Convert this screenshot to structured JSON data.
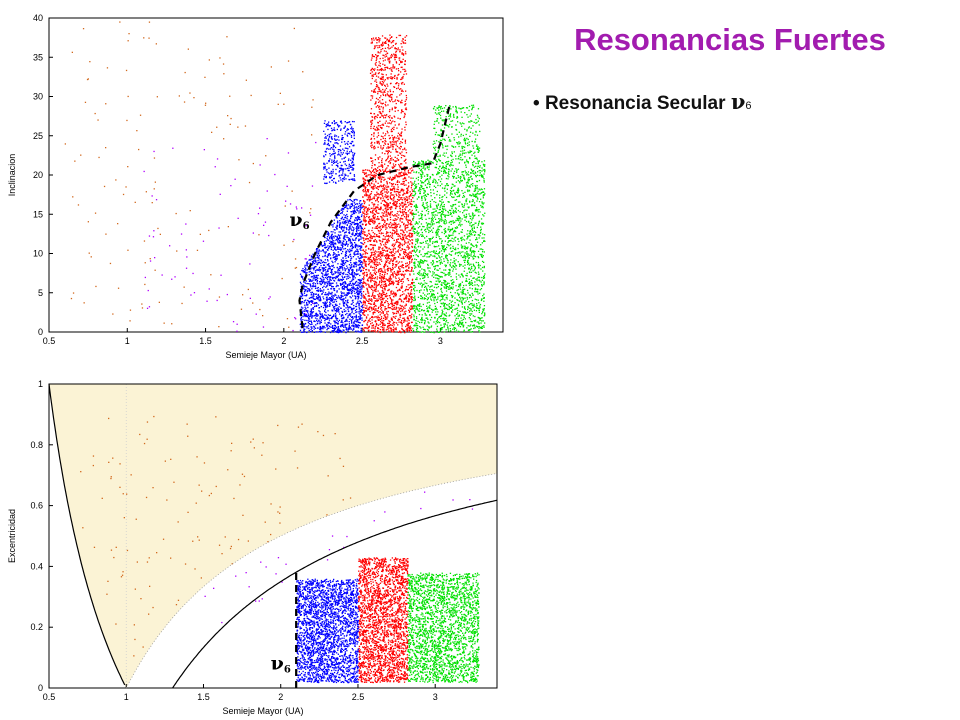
{
  "slide": {
    "title": "Resonancias Fuertes",
    "bullet_symbol": "•",
    "bullet_text": "Resonancia Secular",
    "bullet_nu": "ν",
    "bullet_sub": "6"
  },
  "colors": {
    "title": "#a21caf",
    "blue": "#0000ff",
    "red": "#ff0000",
    "green": "#00e000",
    "orange": "#d2691e",
    "violet": "#b000ff",
    "shade": "#fbf3d5"
  },
  "chart_data": [
    {
      "type": "scatter",
      "title": "",
      "xlabel": "Semieje Mayor (UA)",
      "ylabel": "Inclinacion",
      "xlim": [
        0.5,
        3.4
      ],
      "ylim": [
        0,
        40
      ],
      "xticks": [
        "0.5",
        "1",
        "1.5",
        "2",
        "2.5",
        "3"
      ],
      "yticks": [
        "0",
        "5",
        "10",
        "15",
        "20",
        "25",
        "30",
        "35",
        "40"
      ],
      "grid": false,
      "annotation": {
        "symbol": "ν",
        "sub": "6",
        "at": [
          2.1,
          13.5
        ]
      },
      "boundary_curve_nu6": [
        [
          2.12,
          0.5
        ],
        [
          2.1,
          4
        ],
        [
          2.12,
          6
        ],
        [
          2.2,
          10
        ],
        [
          2.3,
          14
        ],
        [
          2.45,
          18
        ],
        [
          2.6,
          20
        ],
        [
          2.8,
          21
        ],
        [
          2.95,
          21.5
        ],
        [
          3.0,
          24
        ],
        [
          3.06,
          29
        ]
      ],
      "series": [
        {
          "color": "blue",
          "clusters": [
            {
              "x": [
                2.1,
                2.5
              ],
              "y": [
                0,
                17
              ],
              "count": 2600
            },
            {
              "x": [
                2.25,
                2.45
              ],
              "y": [
                19,
                27
              ],
              "count": 350
            }
          ]
        },
        {
          "color": "red",
          "clusters": [
            {
              "x": [
                2.5,
                2.82
              ],
              "y": [
                0,
                21
              ],
              "count": 2200
            },
            {
              "x": [
                2.55,
                2.78
              ],
              "y": [
                21,
                38
              ],
              "count": 750
            }
          ]
        },
        {
          "color": "green",
          "clusters": [
            {
              "x": [
                2.82,
                3.28
              ],
              "y": [
                0,
                22
              ],
              "count": 2200
            },
            {
              "x": [
                2.95,
                3.25
              ],
              "y": [
                22,
                29
              ],
              "count": 300
            }
          ]
        },
        {
          "color": "orange",
          "clusters": [
            {
              "x": [
                0.6,
                2.2
              ],
              "y": [
                0,
                40
              ],
              "count": 140
            }
          ]
        },
        {
          "color": "violet",
          "clusters": [
            {
              "x": [
                1.1,
                2.25
              ],
              "y": [
                0,
                25
              ],
              "count": 80
            }
          ]
        }
      ]
    },
    {
      "type": "scatter",
      "title": "",
      "xlabel": "Semieje Mayor (UA)",
      "ylabel": "Excentricidad",
      "xlim": [
        0.5,
        3.4
      ],
      "ylim": [
        0,
        1
      ],
      "xticks": [
        "0.5",
        "1",
        "1.5",
        "2",
        "2.5",
        "3"
      ],
      "yticks": [
        "0",
        "0.2",
        "0.4",
        "0.6",
        "0.8",
        "1"
      ],
      "grid": false,
      "annotation": {
        "symbol": "ν",
        "sub": "6",
        "at": [
          2.0,
          0.08
        ]
      },
      "nu6_line_x": 2.1,
      "curves": [
        {
          "name": "q = 1 AU",
          "q": 1.0
        },
        {
          "name": "Q = 1 AU",
          "Q": 1.0
        },
        {
          "name": "q = 1.3 AU",
          "q": 1.3
        },
        {
          "name": "dotted",
          "q": 1.0,
          "dotted": true
        }
      ],
      "series": [
        {
          "color": "blue",
          "clusters": [
            {
              "x": [
                2.1,
                2.5
              ],
              "y": [
                0.02,
                0.36
              ],
              "count": 2400
            }
          ]
        },
        {
          "color": "red",
          "clusters": [
            {
              "x": [
                2.5,
                2.82
              ],
              "y": [
                0.02,
                0.43
              ],
              "count": 2200
            }
          ]
        },
        {
          "color": "green",
          "clusters": [
            {
              "x": [
                2.82,
                3.28
              ],
              "y": [
                0.02,
                0.38
              ],
              "count": 2200
            }
          ]
        },
        {
          "color": "orange",
          "clusters": [
            {
              "x": [
                0.7,
                2.6
              ],
              "y": [
                0.1,
                0.9
              ],
              "count": 180
            }
          ]
        },
        {
          "color": "violet",
          "clusters": [
            {
              "x": [
                1.1,
                3.3
              ],
              "y": [
                0.2,
                0.65
              ],
              "count": 110
            }
          ]
        }
      ]
    }
  ]
}
